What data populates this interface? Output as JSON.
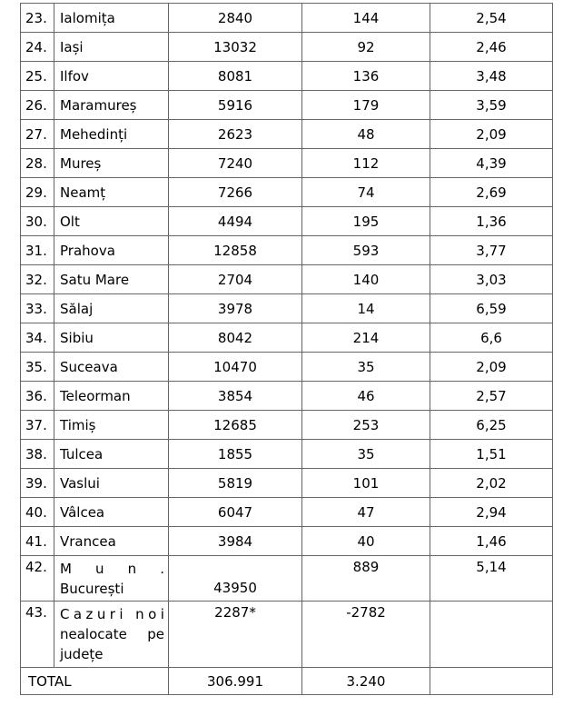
{
  "colors": {
    "border": "#666666",
    "text": "#000000",
    "background": "#ffffff"
  },
  "table": {
    "rows": [
      {
        "no": "23.",
        "name": "Ialomița",
        "values": [
          "2840",
          "144",
          "2,54"
        ]
      },
      {
        "no": "24.",
        "name": "Iași",
        "values": [
          "13032",
          "92",
          "2,46"
        ]
      },
      {
        "no": "25.",
        "name": "Ilfov",
        "values": [
          "8081",
          "136",
          "3,48"
        ]
      },
      {
        "no": "26.",
        "name": "Maramureș",
        "values": [
          "5916",
          "179",
          "3,59"
        ]
      },
      {
        "no": "27.",
        "name": "Mehedinți",
        "values": [
          "2623",
          "48",
          "2,09"
        ]
      },
      {
        "no": "28.",
        "name": "Mureș",
        "values": [
          "7240",
          "112",
          "4,39"
        ]
      },
      {
        "no": "29.",
        "name": "Neamț",
        "values": [
          "7266",
          "74",
          "2,69"
        ]
      },
      {
        "no": "30.",
        "name": "Olt",
        "values": [
          "4494",
          "195",
          "1,36"
        ]
      },
      {
        "no": "31.",
        "name": "Prahova",
        "values": [
          "12858",
          "593",
          "3,77"
        ]
      },
      {
        "no": "32.",
        "name": "Satu Mare",
        "values": [
          "2704",
          "140",
          "3,03"
        ]
      },
      {
        "no": "33.",
        "name": "Sălaj",
        "values": [
          "3978",
          "14",
          "6,59"
        ]
      },
      {
        "no": "34.",
        "name": "Sibiu",
        "values": [
          "8042",
          "214",
          "6,6"
        ]
      },
      {
        "no": "35.",
        "name": "Suceava",
        "values": [
          "10470",
          "35",
          "2,09"
        ]
      },
      {
        "no": "36.",
        "name": "Teleorman",
        "values": [
          "3854",
          "46",
          "2,57"
        ]
      },
      {
        "no": "37.",
        "name": "Timiș",
        "values": [
          "12685",
          "253",
          "6,25"
        ]
      },
      {
        "no": "38.",
        "name": "Tulcea",
        "values": [
          "1855",
          "35",
          "1,51"
        ]
      },
      {
        "no": "39.",
        "name": "Vaslui",
        "values": [
          "5819",
          "101",
          "2,02"
        ]
      },
      {
        "no": "40.",
        "name": "Vâlcea",
        "values": [
          "6047",
          "47",
          "2,94"
        ]
      },
      {
        "no": "41.",
        "name": "Vrancea",
        "values": [
          "3984",
          "40",
          "1,46"
        ]
      },
      {
        "no": "42.",
        "type": "mun",
        "name_lines": [
          {
            "text": "Mun.",
            "justify": "chars"
          },
          {
            "text": "București"
          }
        ],
        "values": [
          "43950",
          "889",
          "5,14"
        ]
      },
      {
        "no": "43.",
        "type": "unalloc",
        "name_lines": [
          {
            "text": "Cazuri noi",
            "justify": "chars"
          },
          {
            "text": "nealocate pe",
            "justify": "words"
          },
          {
            "text": "județe"
          }
        ],
        "values": [
          "2287*",
          "-2782",
          ""
        ]
      }
    ],
    "total": {
      "label": "TOTAL",
      "values": [
        "306.991",
        "3.240",
        ""
      ]
    }
  }
}
